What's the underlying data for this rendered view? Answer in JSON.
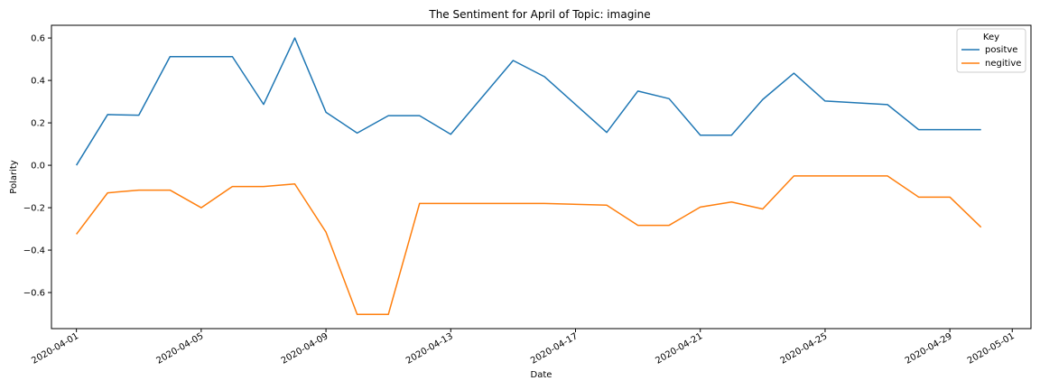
{
  "chart_data": {
    "type": "line",
    "title": "The Sentiment for April of Topic: imagine",
    "xlabel": "Date",
    "ylabel": "Polarity",
    "xlim": [
      -0.8,
      30.6
    ],
    "ylim": [
      -0.77,
      0.66
    ],
    "x_ticks": [
      {
        "pos": 0,
        "label": "2020-04-01"
      },
      {
        "pos": 4,
        "label": "2020-04-05"
      },
      {
        "pos": 8,
        "label": "2020-04-09"
      },
      {
        "pos": 12,
        "label": "2020-04-13"
      },
      {
        "pos": 16,
        "label": "2020-04-17"
      },
      {
        "pos": 20,
        "label": "2020-04-21"
      },
      {
        "pos": 24,
        "label": "2020-04-25"
      },
      {
        "pos": 28,
        "label": "2020-04-29"
      },
      {
        "pos": 30,
        "label": "2020-05-01"
      }
    ],
    "y_ticks": [
      {
        "value": 0.6,
        "label": "0.6"
      },
      {
        "value": 0.4,
        "label": "0.4"
      },
      {
        "value": 0.2,
        "label": "0.2"
      },
      {
        "value": 0.0,
        "label": "0.0"
      },
      {
        "value": -0.2,
        "label": "−0.2"
      },
      {
        "value": -0.4,
        "label": "−0.4"
      },
      {
        "value": -0.6,
        "label": "−0.6"
      }
    ],
    "legend": {
      "title": "Key",
      "placement": "top-right"
    },
    "series": [
      {
        "name": "positve",
        "color": "#1f77b4",
        "x": [
          0,
          1,
          2,
          3,
          4,
          5,
          6,
          7,
          8,
          9,
          10,
          11,
          12,
          14,
          15,
          17,
          18,
          19,
          20,
          21,
          22,
          23,
          24,
          26,
          27,
          28,
          29
        ],
        "values": [
          0.0,
          0.239,
          0.236,
          0.512,
          0.512,
          0.512,
          0.287,
          0.6,
          0.25,
          0.152,
          0.234,
          0.234,
          0.146,
          0.494,
          0.418,
          0.155,
          0.35,
          0.314,
          0.142,
          0.142,
          0.31,
          0.434,
          0.303,
          0.286,
          0.168,
          0.168,
          0.168
        ]
      },
      {
        "name": "negitive",
        "color": "#ff7f0e",
        "x": [
          0,
          1,
          2,
          3,
          4,
          5,
          6,
          7,
          8,
          9,
          10,
          11,
          12,
          14,
          15,
          17,
          18,
          19,
          20,
          21,
          22,
          23,
          24,
          26,
          27,
          28,
          29
        ],
        "values": [
          -0.325,
          -0.13,
          -0.117,
          -0.117,
          -0.2,
          -0.1,
          -0.1,
          -0.088,
          -0.315,
          -0.703,
          -0.703,
          -0.18,
          -0.18,
          -0.18,
          -0.18,
          -0.188,
          -0.283,
          -0.283,
          -0.197,
          -0.173,
          -0.206,
          -0.05,
          -0.05,
          -0.05,
          -0.15,
          -0.15,
          -0.292
        ]
      }
    ]
  }
}
